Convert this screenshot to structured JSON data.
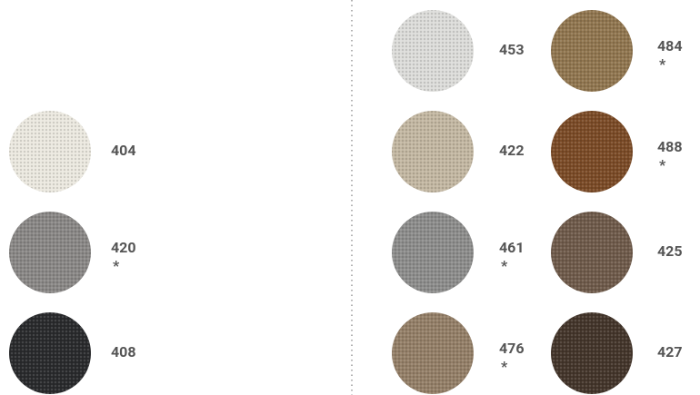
{
  "swatches": [
    {
      "code": "404"
    },
    {
      "code": "420",
      "note": "*"
    },
    {
      "code": "408"
    },
    {
      "code": "453"
    },
    {
      "code": "422"
    },
    {
      "code": "461",
      "note": "*"
    },
    {
      "code": "476",
      "note": "*"
    },
    {
      "code": "484",
      "note": "*"
    },
    {
      "code": "488",
      "note": "*"
    },
    {
      "code": "425"
    },
    {
      "code": "427"
    }
  ]
}
